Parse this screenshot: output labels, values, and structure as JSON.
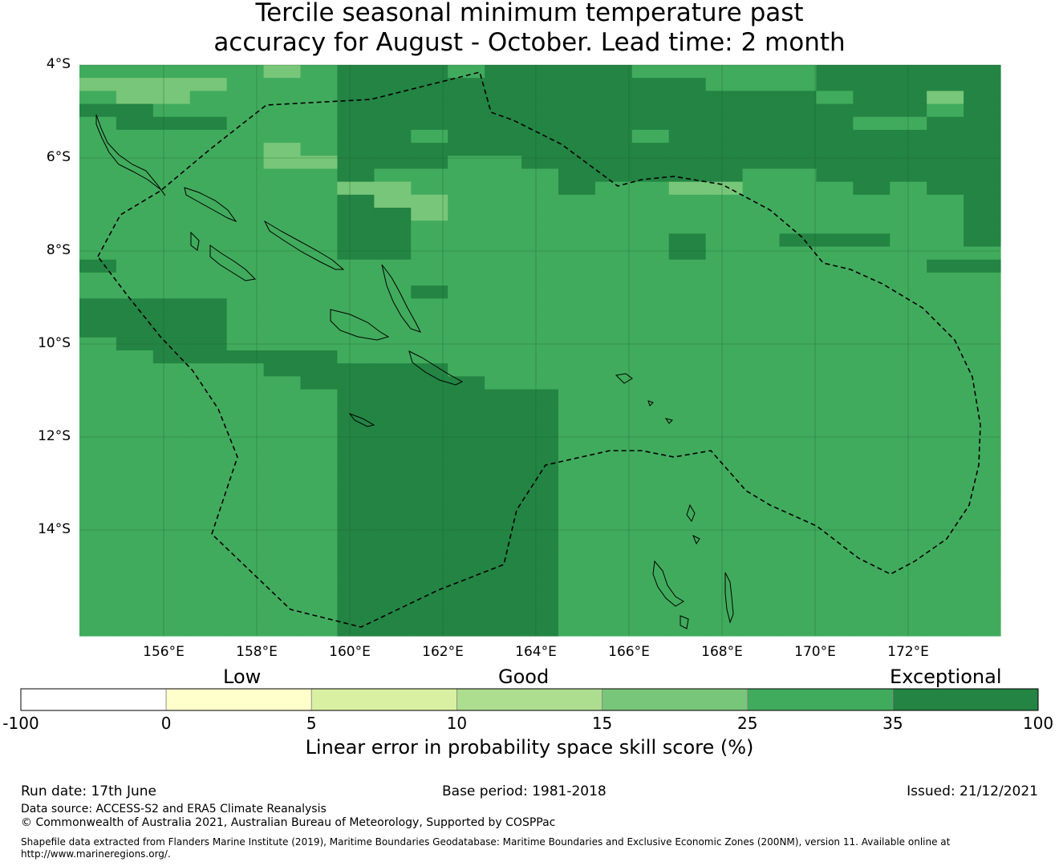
{
  "title": {
    "line1": "Tercile seasonal minimum temperature past",
    "line2": "accuracy for August - October. Lead time: 2 month"
  },
  "map": {
    "lat_labels": [
      "4°S",
      "6°S",
      "8°S",
      "10°S",
      "12°S",
      "14°S"
    ],
    "lon_labels": [
      "156°E",
      "158°E",
      "160°E",
      "162°E",
      "164°E",
      "166°E",
      "168°E",
      "170°E",
      "172°E"
    ],
    "cell_colors": [
      "#ffffff",
      "#ffffcc",
      "#d9f0a3",
      "#addd8e",
      "#78c679",
      "#41ab5d",
      "#238443"
    ],
    "grid": [
      "5555545666566665555566666",
      "4444555666666666655566666",
      "5445555666666666666656646",
      "6655555666666666666666656",
      "5666555666666666666665566",
      "5555555665666665666666666",
      "5555545666666666666666666",
      "5555544666556666666666666",
      "5555555655555666665566666",
      "5555555445555655445556566",
      "5555555644555555555555556",
      "5555555664555555555555556",
      "5555555665555555555555556",
      "5555555665555555655666556",
      "5555555665555555655555555",
      "6555555555555555555555566",
      "5555555555555555555555555",
      "5555555556555555555555555",
      "6666555555555555555555555",
      "6666555555555555555555555",
      "6666555555555555555555555",
      "5666555555555555555555555",
      "5566666555555555555555555",
      "5555566666555555555555555",
      "5555556666655555555555555",
      "5555555666666555555555555",
      "5555555666666555555555555",
      "5555555666666555555555555",
      "5555555666666555555555555",
      "5555555666666555555555555",
      "5555555666666555555555555",
      "5555555666666555555555555",
      "5555555666666555555555555",
      "5555555666666555555555555",
      "5555555666666555555555555",
      "5555555666666555555555555",
      "5555555666666555555555555",
      "5555555666666555555555555",
      "5555555666666555555555555",
      "5555555666666555555555555",
      "5555555666666555555555555",
      "5555555666666555555555555",
      "5555555666666555555555555",
      "5555555666666555555555555"
    ]
  },
  "colorbar": {
    "categories": [
      "Low",
      "Good",
      "Exceptional"
    ],
    "ticks": [
      "-100",
      "0",
      "5",
      "10",
      "15",
      "25",
      "35",
      "100"
    ],
    "colors": [
      "#ffffff",
      "#ffffcc",
      "#d9f0a3",
      "#addd8e",
      "#78c679",
      "#41ab5d",
      "#238443"
    ],
    "label": "Linear error in probability space skill score (%)"
  },
  "footer": {
    "run_date": "Run date: 17th June",
    "base_period": "Base period: 1981-2018",
    "issued": "Issued: 21/12/2021",
    "data_source": "Data source: ACCESS-S2 and ERA5 Climate Reanalysis",
    "copyright": "© Commonwealth of Australia 2021, Australian Bureau of Meteorology, Supported by COSPPac",
    "shapefile_line1": "Shapefile data extracted from Flanders Marine Institute (2019), Maritime Boundaries Geodatabase: Maritime Boundaries and Exclusive Economic Zones (200NM), version 11. Available online at",
    "shapefile_line2": "http://www.marineregions.org/."
  }
}
